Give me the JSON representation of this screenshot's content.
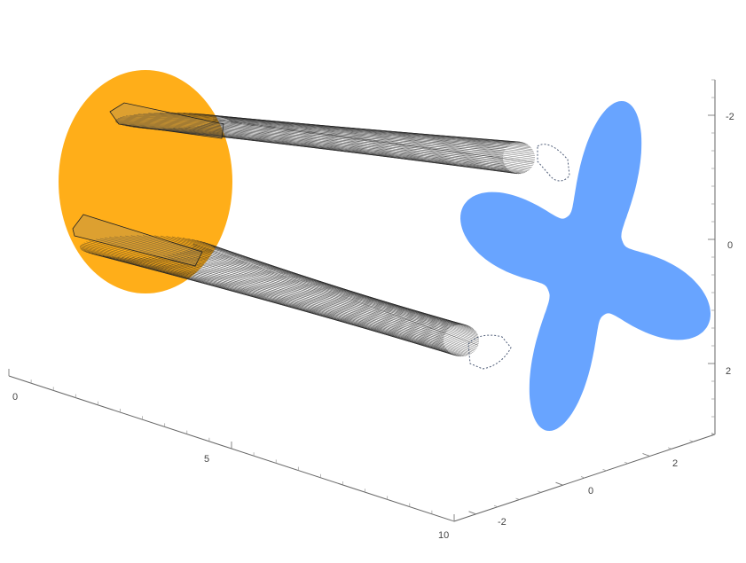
{
  "chart_data": {
    "type": "3d-plot",
    "description_elements": [
      "orange disk",
      "blue four-petal flower",
      "two tubes of line segments"
    ],
    "colors": {
      "disk": "#FFA500",
      "flower": "#63A1FF",
      "lines": "#222222",
      "axis": "#666666"
    },
    "axes": {
      "x": {
        "ticks": [
          "0",
          "5",
          "10"
        ]
      },
      "y": {
        "ticks": [
          "-2",
          "0",
          "2"
        ]
      },
      "z": {
        "ticks": [
          "-2",
          "0",
          "2"
        ]
      }
    }
  }
}
